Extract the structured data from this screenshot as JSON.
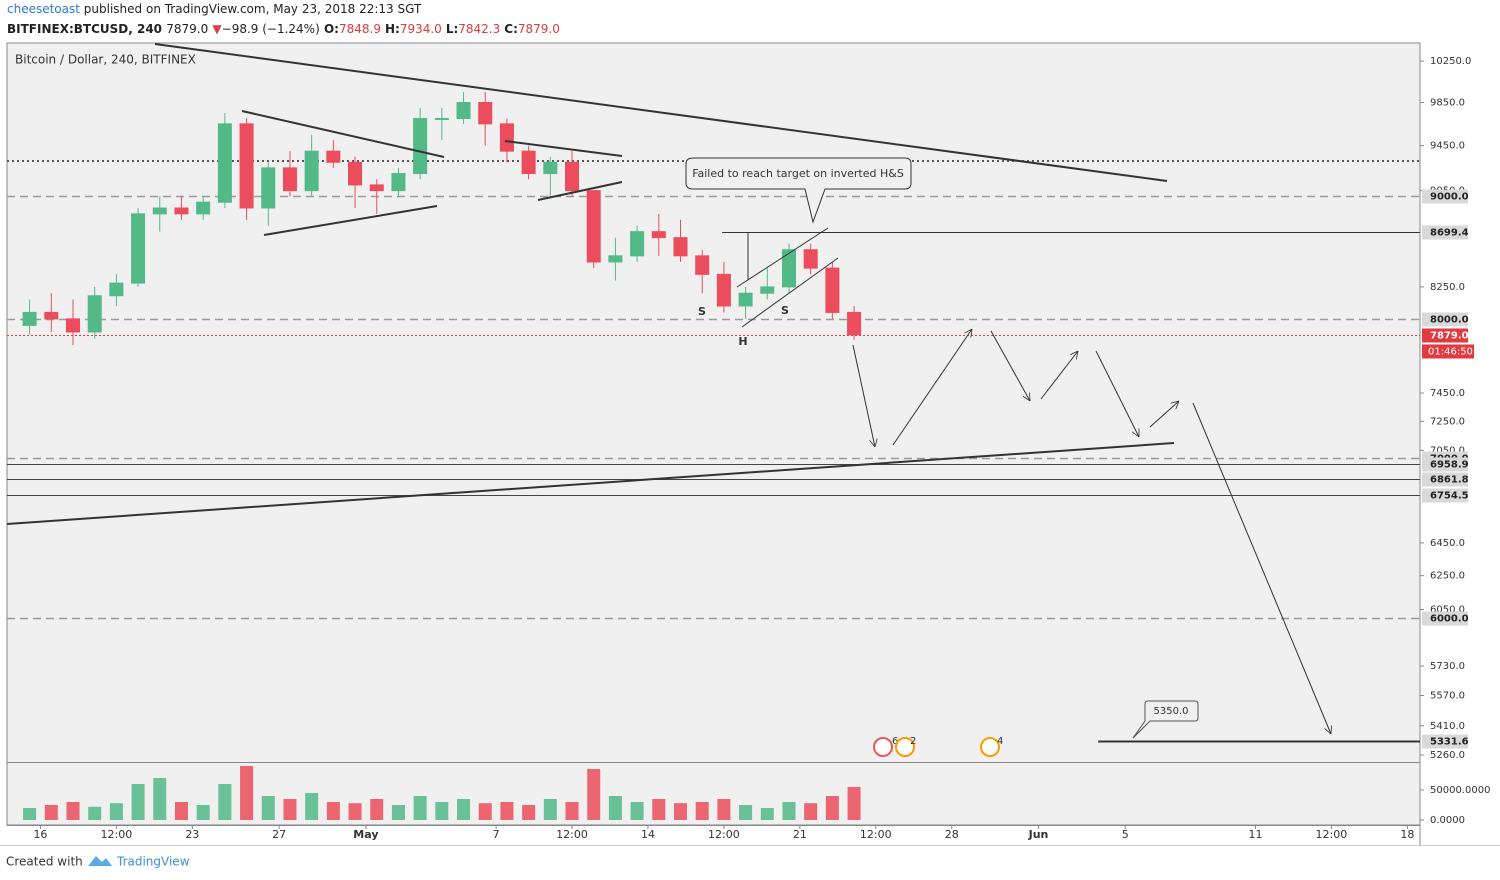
{
  "header": {
    "publisher": "cheesetoast",
    "published": "published on TradingView.com, May 23, 2018 22:13 SGT",
    "symbol": "BITFINEX:BTCUSD, 240",
    "last": "7879.0",
    "arrow": "▼",
    "change": "−98.9 (−1.24%)",
    "ohlc": [
      {
        "key": "O:",
        "value": "7848.9"
      },
      {
        "key": "H:",
        "value": "7934.0"
      },
      {
        "key": "L:",
        "value": "7842.3"
      },
      {
        "key": "C:",
        "value": "7879.0"
      }
    ]
  },
  "chart_data": {
    "type": "candlestick",
    "title": "Bitcoin / Dollar, 240, BITFINEX",
    "log_scale": true,
    "ylim": [
      5225,
      10430
    ],
    "yticks": [
      {
        "value": 10250,
        "label": "10250.0"
      },
      {
        "value": 9850,
        "label": "9850.0"
      },
      {
        "value": 9450,
        "label": "9450.0"
      },
      {
        "value": 9050,
        "label": "9050.0"
      },
      {
        "value": 8250,
        "label": "8250.0"
      },
      {
        "value": 7450,
        "label": "7450.0"
      },
      {
        "value": 7250,
        "label": "7250.0"
      },
      {
        "value": 7050,
        "label": "7050.0"
      },
      {
        "value": 6450,
        "label": "6450.0"
      },
      {
        "value": 6250,
        "label": "6250.0"
      },
      {
        "value": 6050,
        "label": "6050.0"
      },
      {
        "value": 5730,
        "label": "5730.0"
      },
      {
        "value": 5570,
        "label": "5570.0"
      },
      {
        "value": 5410,
        "label": "5410.0"
      },
      {
        "value": 5260,
        "label": "5260.0"
      }
    ],
    "xlim": [
      "04-14 11:00",
      "06-18 14:00"
    ],
    "xticks": [
      {
        "value": "04-16 00:00",
        "label": "16"
      },
      {
        "value": "04-19 12:00",
        "label": "12:00"
      },
      {
        "value": "04-23 00:00",
        "label": "23"
      },
      {
        "value": "04-27 00:00",
        "label": "27"
      },
      {
        "value": "05-01 00:00",
        "label": "May"
      },
      {
        "value": "05-07 00:00",
        "label": "7"
      },
      {
        "value": "05-10 12:00",
        "label": "12:00"
      },
      {
        "value": "05-14 00:00",
        "label": "14"
      },
      {
        "value": "05-17 12:00",
        "label": "12:00"
      },
      {
        "value": "05-21 00:00",
        "label": "21"
      },
      {
        "value": "05-24 12:00",
        "label": "12:00"
      },
      {
        "value": "05-28 00:00",
        "label": "28"
      },
      {
        "value": "06-01 00:00",
        "label": "Jun"
      },
      {
        "value": "06-05 00:00",
        "label": "5"
      },
      {
        "value": "06-11 00:00",
        "label": "11"
      },
      {
        "value": "06-14 12:00",
        "label": "12:00"
      },
      {
        "value": "06-18 00:00",
        "label": "18"
      }
    ],
    "x": [
      "04-15 12:00",
      "04-16 12:00",
      "04-17 12:00",
      "04-18 12:00",
      "04-19 12:00",
      "04-20 12:00",
      "04-21 12:00",
      "04-22 12:00",
      "04-23 12:00",
      "04-24 12:00",
      "04-25 12:00",
      "04-26 12:00",
      "04-27 12:00",
      "04-28 12:00",
      "04-29 12:00",
      "04-30 12:00",
      "05-01 12:00",
      "05-02 12:00",
      "05-03 12:00",
      "05-04 12:00",
      "05-05 12:00",
      "05-06 12:00",
      "05-07 12:00",
      "05-08 12:00",
      "05-09 12:00",
      "05-10 12:00",
      "05-11 12:00",
      "05-12 12:00",
      "05-13 12:00",
      "05-14 12:00",
      "05-15 12:00",
      "05-16 12:00",
      "05-17 12:00",
      "05-18 12:00",
      "05-19 12:00",
      "05-20 12:00",
      "05-21 12:00",
      "05-22 12:00",
      "05-23 12:00"
    ],
    "open": [
      7950,
      8050,
      8000,
      7900,
      8180,
      8280,
      8850,
      8900,
      8850,
      8950,
      9650,
      8900,
      9250,
      9050,
      9400,
      9300,
      9100,
      9050,
      9200,
      9700,
      9700,
      9850,
      9650,
      9400,
      9200,
      9300,
      9050,
      8450,
      8500,
      8700,
      8650,
      8500,
      8350,
      8100,
      8200,
      8250,
      8550,
      8400,
      8050
    ],
    "high": [
      8150,
      8200,
      8150,
      8250,
      8350,
      8900,
      9000,
      9000,
      9000,
      9750,
      9700,
      9300,
      9400,
      9550,
      9500,
      9350,
      9150,
      9250,
      9800,
      9800,
      9950,
      9950,
      9700,
      9450,
      9350,
      9400,
      9050,
      8650,
      8750,
      8850,
      8800,
      8550,
      8450,
      8250,
      8400,
      8600,
      8600,
      8450,
      8100
    ],
    "low": [
      7880,
      7900,
      7800,
      7850,
      8100,
      8250,
      8700,
      8800,
      8800,
      8900,
      8800,
      8750,
      9000,
      9000,
      9250,
      8900,
      8850,
      9000,
      9150,
      9500,
      9650,
      9450,
      9300,
      9150,
      9000,
      9000,
      8400,
      8300,
      8450,
      8500,
      8450,
      8200,
      8050,
      8000,
      8150,
      8200,
      8350,
      8000,
      7842
    ],
    "close": [
      8050,
      8000,
      7900,
      8180,
      8280,
      8850,
      8900,
      8850,
      8950,
      9650,
      8900,
      9250,
      9050,
      9400,
      9300,
      9100,
      9050,
      9200,
      9700,
      9700,
      9850,
      9650,
      9400,
      9200,
      9300,
      9050,
      8450,
      8500,
      8700,
      8650,
      8500,
      8350,
      8100,
      8200,
      8250,
      8550,
      8400,
      8050,
      7879
    ],
    "up_color": "#53b987",
    "down_color": "#eb4d5c",
    "volume": {
      "ylim": [
        0,
        95000
      ],
      "yticks": [
        {
          "value": 50000,
          "label": "50000.0000"
        },
        {
          "value": 0,
          "label": "0.0000"
        }
      ],
      "values": [
        20000,
        25000,
        30000,
        22000,
        28000,
        60000,
        70000,
        30000,
        25000,
        60000,
        90000,
        40000,
        35000,
        45000,
        30000,
        28000,
        35000,
        25000,
        40000,
        30000,
        35000,
        28000,
        30000,
        25000,
        35000,
        30000,
        85000,
        40000,
        30000,
        35000,
        28000,
        30000,
        35000,
        25000,
        20000,
        30000,
        28000,
        40000,
        55000
      ]
    },
    "levels": [
      {
        "value": 9000,
        "label": "9000.0",
        "style": "dashed",
        "color": "#9a9a9a"
      },
      {
        "value": 8699.4,
        "label": "8699.4",
        "style": "solid",
        "color": "#333333",
        "from": "05-17 10:00"
      },
      {
        "value": 8000,
        "label": "8000.0",
        "style": "dashed",
        "color": "#9a9a9a"
      },
      {
        "value": 7879,
        "label": "7879.0",
        "style": "dotted",
        "color": "#e23a3e"
      },
      {
        "value": 7000,
        "label": "7000.0",
        "style": "dashed",
        "color": "#9a9a9a"
      },
      {
        "value": 6958.9,
        "label": "6958.9",
        "style": "solid",
        "color": "#444444"
      },
      {
        "value": 6861.8,
        "label": "6861.8",
        "style": "solid",
        "color": "#444444"
      },
      {
        "value": 6754.5,
        "label": "6754.5",
        "style": "solid",
        "color": "#444444"
      },
      {
        "value": 6000,
        "label": "6000.0",
        "style": "dashed",
        "color": "#9a9a9a"
      },
      {
        "value": 5331.6,
        "label": "5331.6",
        "style": "thick",
        "color": "#333333",
        "from": "06-03 18:00"
      }
    ],
    "countdown": "01:46:50",
    "annotations": {
      "callout": "Failed to reach target on inverted H&S",
      "pattern_labels": [
        "S",
        "H",
        "S"
      ],
      "target_label": "5350.0",
      "events": [
        "6",
        "2",
        "4"
      ]
    }
  },
  "footer": {
    "created_with": "Created with",
    "brand": "TradingView"
  }
}
